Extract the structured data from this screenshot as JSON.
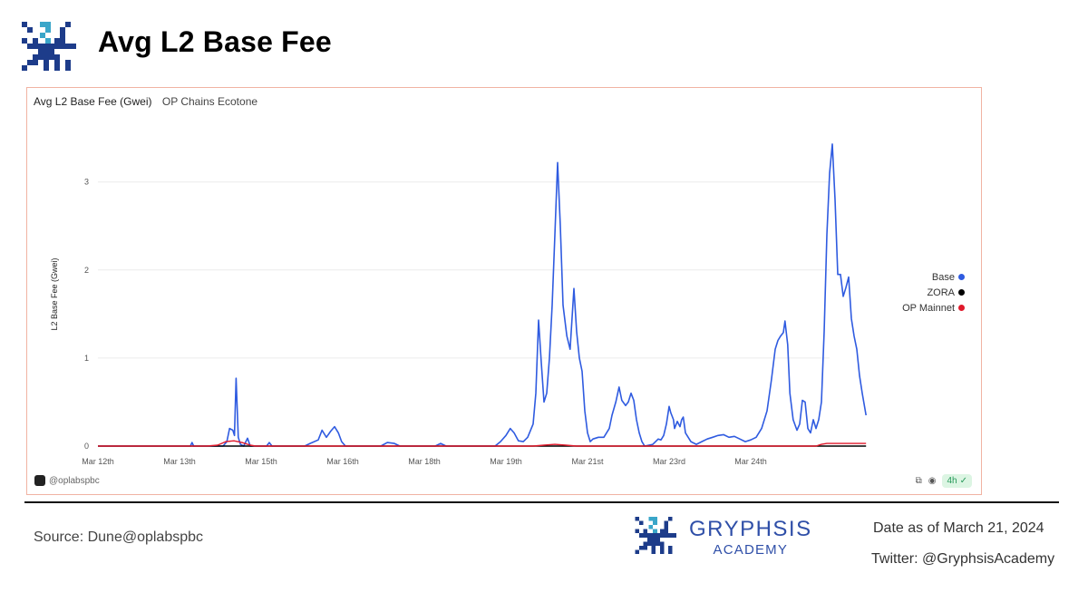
{
  "header": {
    "title": "Avg L2 Base Fee"
  },
  "chart_card": {
    "title": "Avg L2 Base Fee (Gwei)",
    "subtitle": "OP Chains Ecotone",
    "watermark": "@oplabspbc",
    "interval_badge": "4h"
  },
  "chart_data": {
    "type": "line",
    "title": "Avg L2 Base Fee (Gwei)",
    "subtitle": "OP Chains Ecotone",
    "xlabel": "",
    "ylabel": "L2 Base Fee (Gwei)",
    "xlim": [
      0,
      13.5
    ],
    "ylim": [
      0,
      3.45
    ],
    "x_ticks": [
      {
        "x": 0,
        "label": "Mar 12th"
      },
      {
        "x": 1.5,
        "label": "Mar 13th"
      },
      {
        "x": 3,
        "label": "Mar 15th"
      },
      {
        "x": 4.5,
        "label": "Mar 16th"
      },
      {
        "x": 6,
        "label": "Mar 18th"
      },
      {
        "x": 7.5,
        "label": "Mar 19th"
      },
      {
        "x": 9,
        "label": "Mar 21st"
      },
      {
        "x": 10.5,
        "label": "Mar 23rd"
      },
      {
        "x": 12,
        "label": "Mar 24th"
      }
    ],
    "y_ticks": [
      0,
      1,
      2,
      3
    ],
    "grid": true,
    "legend_position": "right",
    "series": [
      {
        "name": "Base",
        "color": "#2f5be0",
        "points": [
          [
            0,
            0
          ],
          [
            1.7,
            0
          ],
          [
            1.73,
            0.04
          ],
          [
            1.76,
            0
          ],
          [
            2.3,
            0
          ],
          [
            2.37,
            0.05
          ],
          [
            2.42,
            0.2
          ],
          [
            2.48,
            0.18
          ],
          [
            2.51,
            0.12
          ],
          [
            2.54,
            0.77
          ],
          [
            2.58,
            0.1
          ],
          [
            2.62,
            0.02
          ],
          [
            2.68,
            0
          ],
          [
            2.75,
            0.09
          ],
          [
            2.8,
            0
          ],
          [
            3.1,
            0
          ],
          [
            3.15,
            0.04
          ],
          [
            3.2,
            0
          ],
          [
            3.8,
            0
          ],
          [
            3.9,
            0.03
          ],
          [
            4.05,
            0.07
          ],
          [
            4.12,
            0.18
          ],
          [
            4.2,
            0.1
          ],
          [
            4.28,
            0.17
          ],
          [
            4.35,
            0.22
          ],
          [
            4.42,
            0.15
          ],
          [
            4.48,
            0.05
          ],
          [
            4.55,
            0
          ],
          [
            5.2,
            0
          ],
          [
            5.32,
            0.04
          ],
          [
            5.45,
            0.03
          ],
          [
            5.55,
            0
          ],
          [
            6.2,
            0
          ],
          [
            6.3,
            0.03
          ],
          [
            6.4,
            0
          ],
          [
            7.3,
            0
          ],
          [
            7.4,
            0.05
          ],
          [
            7.5,
            0.12
          ],
          [
            7.58,
            0.2
          ],
          [
            7.65,
            0.15
          ],
          [
            7.73,
            0.06
          ],
          [
            7.82,
            0.05
          ],
          [
            7.9,
            0.1
          ],
          [
            8.0,
            0.25
          ],
          [
            8.05,
            0.6
          ],
          [
            8.1,
            1.43
          ],
          [
            8.15,
            0.95
          ],
          [
            8.2,
            0.5
          ],
          [
            8.25,
            0.6
          ],
          [
            8.3,
            1.0
          ],
          [
            8.35,
            1.6
          ],
          [
            8.4,
            2.4
          ],
          [
            8.45,
            3.22
          ],
          [
            8.5,
            2.5
          ],
          [
            8.55,
            1.6
          ],
          [
            8.62,
            1.25
          ],
          [
            8.68,
            1.1
          ],
          [
            8.75,
            1.79
          ],
          [
            8.8,
            1.3
          ],
          [
            8.85,
            1.0
          ],
          [
            8.9,
            0.85
          ],
          [
            8.95,
            0.4
          ],
          [
            9.0,
            0.15
          ],
          [
            9.05,
            0.05
          ],
          [
            9.1,
            0.08
          ],
          [
            9.2,
            0.1
          ],
          [
            9.3,
            0.1
          ],
          [
            9.4,
            0.2
          ],
          [
            9.45,
            0.35
          ],
          [
            9.52,
            0.5
          ],
          [
            9.58,
            0.67
          ],
          [
            9.63,
            0.52
          ],
          [
            9.7,
            0.46
          ],
          [
            9.75,
            0.5
          ],
          [
            9.8,
            0.6
          ],
          [
            9.85,
            0.52
          ],
          [
            9.9,
            0.3
          ],
          [
            9.95,
            0.15
          ],
          [
            10.0,
            0.05
          ],
          [
            10.05,
            0
          ],
          [
            10.2,
            0.02
          ],
          [
            10.3,
            0.08
          ],
          [
            10.35,
            0.07
          ],
          [
            10.4,
            0.12
          ],
          [
            10.45,
            0.25
          ],
          [
            10.5,
            0.45
          ],
          [
            10.53,
            0.38
          ],
          [
            10.58,
            0.3
          ],
          [
            10.6,
            0.2
          ],
          [
            10.65,
            0.28
          ],
          [
            10.7,
            0.22
          ],
          [
            10.73,
            0.3
          ],
          [
            10.76,
            0.33
          ],
          [
            10.8,
            0.15
          ],
          [
            10.9,
            0.05
          ],
          [
            11.0,
            0.02
          ],
          [
            11.1,
            0.05
          ],
          [
            11.2,
            0.08
          ],
          [
            11.3,
            0.1
          ],
          [
            11.4,
            0.12
          ],
          [
            11.5,
            0.13
          ],
          [
            11.6,
            0.1
          ],
          [
            11.7,
            0.11
          ],
          [
            11.8,
            0.08
          ],
          [
            11.9,
            0.05
          ],
          [
            12.0,
            0.07
          ],
          [
            12.1,
            0.1
          ],
          [
            12.2,
            0.2
          ],
          [
            12.3,
            0.4
          ],
          [
            12.38,
            0.75
          ],
          [
            12.45,
            1.1
          ],
          [
            12.5,
            1.2
          ],
          [
            12.55,
            1.25
          ],
          [
            12.6,
            1.29
          ],
          [
            12.63,
            1.42
          ],
          [
            12.68,
            1.15
          ],
          [
            12.72,
            0.6
          ],
          [
            12.78,
            0.3
          ],
          [
            12.85,
            0.18
          ],
          [
            12.9,
            0.25
          ],
          [
            12.95,
            0.52
          ],
          [
            13.0,
            0.5
          ],
          [
            13.05,
            0.2
          ],
          [
            13.1,
            0.15
          ],
          [
            13.15,
            0.3
          ],
          [
            13.2,
            0.2
          ],
          [
            13.25,
            0.3
          ],
          [
            13.3,
            0.5
          ],
          [
            13.35,
            1.3
          ],
          [
            13.4,
            2.4
          ],
          [
            13.45,
            3.1
          ],
          [
            13.5,
            3.43
          ],
          [
            13.55,
            2.8
          ],
          [
            13.6,
            1.95
          ],
          [
            13.65,
            1.95
          ],
          [
            13.7,
            1.7
          ],
          [
            13.75,
            1.8
          ],
          [
            13.8,
            1.92
          ],
          [
            13.85,
            1.45
          ],
          [
            13.9,
            1.25
          ],
          [
            13.95,
            1.1
          ],
          [
            14.0,
            0.8
          ],
          [
            14.05,
            0.6
          ],
          [
            14.12,
            0.35
          ]
        ]
      },
      {
        "name": "ZORA",
        "color": "#000000",
        "points": [
          [
            0,
            0
          ],
          [
            14.12,
            0
          ]
        ]
      },
      {
        "name": "OP Mainnet",
        "color": "#e0192b",
        "points": [
          [
            0,
            0
          ],
          [
            2.0,
            0
          ],
          [
            2.2,
            0.01
          ],
          [
            2.35,
            0.05
          ],
          [
            2.5,
            0.06
          ],
          [
            2.65,
            0.04
          ],
          [
            2.8,
            0.01
          ],
          [
            2.9,
            0
          ],
          [
            8.0,
            0
          ],
          [
            8.2,
            0.01
          ],
          [
            8.4,
            0.02
          ],
          [
            8.6,
            0.01
          ],
          [
            8.8,
            0
          ],
          [
            13.2,
            0
          ],
          [
            13.3,
            0.02
          ],
          [
            13.4,
            0.03
          ],
          [
            14.12,
            0.03
          ]
        ]
      }
    ]
  },
  "footer": {
    "source": "Source: Dune@oplabspbc",
    "brand_name": "GRYPHSIS",
    "brand_sub": "ACADEMY",
    "date": "Date as of March 21, 2024",
    "twitter": "Twitter: @GryphsisAcademy"
  }
}
